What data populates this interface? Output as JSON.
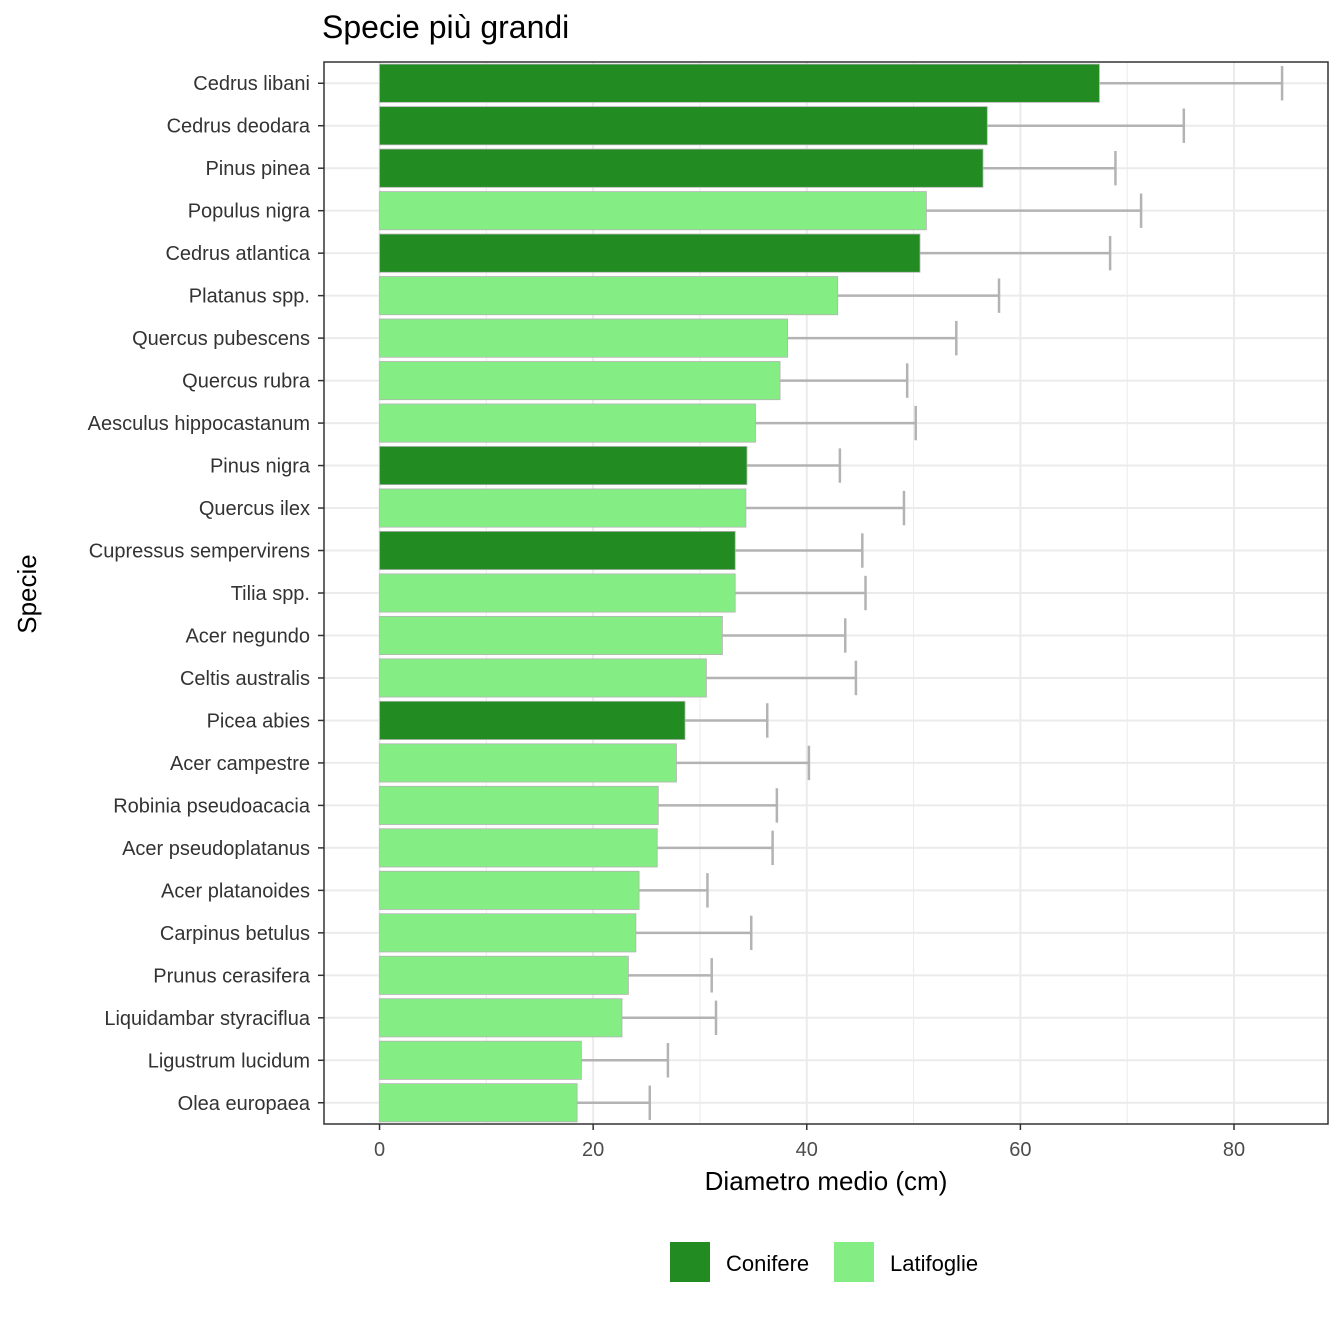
{
  "chart_data": {
    "type": "bar",
    "orientation": "horizontal",
    "title": "Specie più grandi",
    "xlabel": "Diametro medio (cm)",
    "ylabel": "Specie",
    "xlim": [
      -5.2,
      88.8
    ],
    "x_ticks": [
      0,
      20,
      40,
      60,
      80
    ],
    "grid": true,
    "legend_position": "bottom",
    "colors": {
      "Conifere": "#228B22",
      "Latifoglie": "#84EE84",
      "errorbar": "#B3B3B3"
    },
    "legend": [
      {
        "name": "Conifere",
        "color": "#228B22"
      },
      {
        "name": "Latifoglie",
        "color": "#84EE84"
      }
    ],
    "categories": [
      "Cedrus libani",
      "Cedrus deodara",
      "Pinus pinea",
      "Populus nigra",
      "Cedrus atlantica",
      "Platanus spp.",
      "Quercus pubescens",
      "Quercus rubra",
      "Aesculus hippocastanum",
      "Pinus nigra",
      "Quercus ilex",
      "Cupressus sempervirens",
      "Tilia spp.",
      "Acer negundo",
      "Celtis australis",
      "Picea abies",
      "Acer campestre",
      "Robinia pseudoacacia",
      "Acer pseudoplatanus",
      "Acer platanoides",
      "Carpinus betulus",
      "Prunus cerasifera",
      "Liquidambar styraciflua",
      "Ligustrum lucidum",
      "Olea europaea"
    ],
    "values": [
      67.4,
      56.9,
      56.5,
      51.2,
      50.6,
      42.9,
      38.2,
      37.5,
      35.2,
      34.4,
      34.3,
      33.3,
      33.3,
      32.1,
      30.6,
      28.6,
      27.8,
      26.1,
      26.0,
      24.3,
      24.0,
      23.3,
      22.7,
      18.9,
      18.5
    ],
    "error_upper": [
      84.5,
      75.3,
      68.9,
      71.3,
      68.4,
      58.0,
      54.0,
      49.4,
      50.2,
      43.1,
      49.1,
      45.2,
      45.5,
      43.6,
      44.6,
      36.3,
      40.2,
      37.2,
      36.8,
      30.7,
      34.8,
      31.1,
      31.5,
      27.0,
      25.3
    ],
    "group": [
      "Conifere",
      "Conifere",
      "Conifere",
      "Latifoglie",
      "Conifere",
      "Latifoglie",
      "Latifoglie",
      "Latifoglie",
      "Latifoglie",
      "Conifere",
      "Latifoglie",
      "Conifere",
      "Latifoglie",
      "Latifoglie",
      "Latifoglie",
      "Conifere",
      "Latifoglie",
      "Latifoglie",
      "Latifoglie",
      "Latifoglie",
      "Latifoglie",
      "Latifoglie",
      "Latifoglie",
      "Latifoglie",
      "Latifoglie"
    ]
  }
}
